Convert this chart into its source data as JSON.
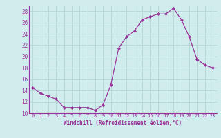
{
  "x": [
    0,
    1,
    2,
    3,
    4,
    5,
    6,
    7,
    8,
    9,
    10,
    11,
    12,
    13,
    14,
    15,
    16,
    17,
    18,
    19,
    20,
    21,
    22,
    23
  ],
  "y": [
    14.5,
    13.5,
    13.0,
    12.5,
    11.0,
    11.0,
    11.0,
    11.0,
    10.5,
    11.5,
    15.0,
    21.5,
    23.5,
    24.5,
    26.5,
    27.0,
    27.5,
    27.5,
    28.5,
    26.5,
    23.5,
    19.5,
    18.5,
    18.0
  ],
  "line_color": "#993399",
  "marker": "D",
  "marker_size": 2.0,
  "bg_color": "#d0ecec",
  "grid_color": "#b8d8d8",
  "xlabel": "Windchill (Refroidissement éolien,°C)",
  "xlabel_color": "#993399",
  "tick_color": "#993399",
  "xlim": [
    -0.5,
    23.5
  ],
  "ylim": [
    10,
    29
  ],
  "yticks": [
    10,
    12,
    14,
    16,
    18,
    20,
    22,
    24,
    26,
    28
  ],
  "xticks": [
    0,
    1,
    2,
    3,
    4,
    5,
    6,
    7,
    8,
    9,
    10,
    11,
    12,
    13,
    14,
    15,
    16,
    17,
    18,
    19,
    20,
    21,
    22,
    23
  ]
}
